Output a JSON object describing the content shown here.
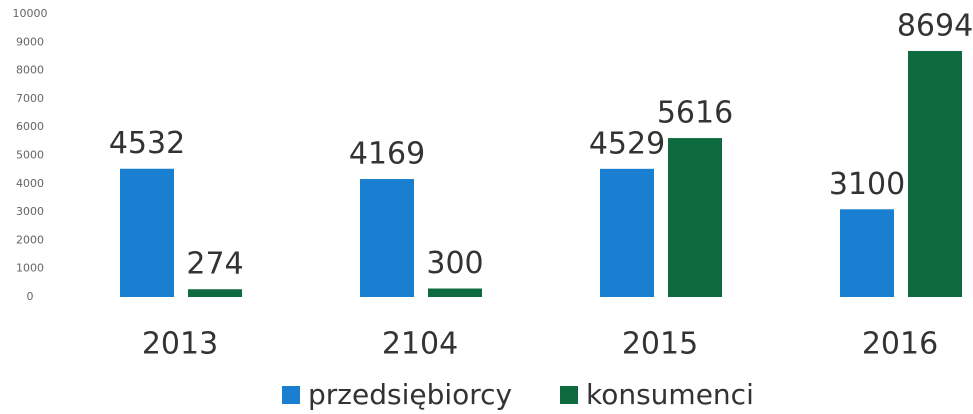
{
  "chart_data": {
    "type": "bar",
    "categories": [
      "2013",
      "2104",
      "2015",
      "2016"
    ],
    "series": [
      {
        "name": "przedsiębiorcy",
        "color": "#1a7fd0",
        "values": [
          4532,
          4169,
          4529,
          3100
        ]
      },
      {
        "name": "konsumenci",
        "color": "#0e6b3f",
        "values": [
          274,
          300,
          5616,
          8694
        ]
      }
    ],
    "ylim": [
      0,
      10000
    ],
    "yticks": [
      0,
      1000,
      2000,
      3000,
      4000,
      5000,
      6000,
      7000,
      8000,
      9000,
      10000
    ],
    "grid": false,
    "legend": "bottom"
  }
}
